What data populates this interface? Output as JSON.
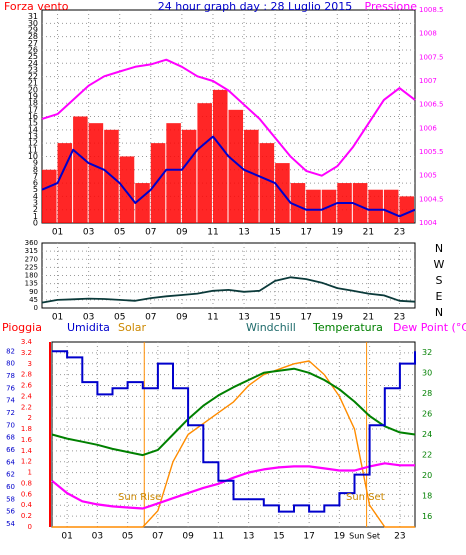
{
  "chart_data": [
    {
      "type": "line",
      "title": "24 hour graph day : 28 Luglio 2015",
      "left_label": "Forza vento",
      "right_label": "Pressione",
      "x_ticks": [
        "01",
        "03",
        "05",
        "07",
        "09",
        "11",
        "13",
        "15",
        "17",
        "19",
        "21",
        "23"
      ],
      "y_left_ticks": [
        "0",
        "1",
        "2",
        "3",
        "4",
        "5",
        "6",
        "7",
        "8",
        "9",
        "10",
        "11",
        "12",
        "13",
        "14",
        "15",
        "16",
        "17",
        "18",
        "19",
        "20",
        "21",
        "22",
        "23",
        "24",
        "25",
        "26",
        "27",
        "28",
        "29",
        "30",
        "31"
      ],
      "y_right_ticks": [
        "1004",
        "1004.5",
        "1005",
        "1005.5",
        "1006",
        "1006.5",
        "1007",
        "1007.5",
        "1008",
        "1008.5"
      ],
      "ylim_left": [
        0,
        32
      ],
      "ylim_right": [
        1004,
        1008.5
      ],
      "grid": true,
      "colors": {
        "gust": "#ff0000",
        "wind": "#0000cc",
        "pressure": "#ff00ff"
      },
      "x_hours": [
        0,
        1,
        2,
        3,
        4,
        5,
        6,
        7,
        8,
        9,
        10,
        11,
        12,
        13,
        14,
        15,
        16,
        17,
        18,
        19,
        20,
        21,
        22,
        23,
        24
      ],
      "series": [
        {
          "id": "gust",
          "values": [
            8,
            12,
            16,
            15,
            14,
            10,
            6,
            12,
            15,
            14,
            18,
            20,
            17,
            14,
            12,
            9,
            6,
            5,
            5,
            6,
            6,
            5,
            5,
            4,
            5
          ]
        },
        {
          "id": "wind",
          "values": [
            5,
            6,
            11,
            9,
            8,
            6,
            3,
            5,
            8,
            8,
            11,
            13,
            10,
            8,
            7,
            6,
            3,
            2,
            2,
            3,
            3,
            2,
            2,
            1,
            2
          ]
        },
        {
          "id": "pressure",
          "values": [
            1006.2,
            1006.3,
            1006.6,
            1006.9,
            1007.1,
            1007.2,
            1007.3,
            1007.35,
            1007.45,
            1007.3,
            1007.1,
            1007.0,
            1006.8,
            1006.5,
            1006.2,
            1005.8,
            1005.4,
            1005.1,
            1005.0,
            1005.2,
            1005.6,
            1006.1,
            1006.6,
            1006.85,
            1006.6
          ]
        }
      ]
    },
    {
      "type": "line",
      "right_label": "N\nW\nS\nE\nN",
      "x_ticks": [
        "01",
        "03",
        "05",
        "07",
        "09",
        "11",
        "13",
        "15",
        "17",
        "19",
        "21",
        "23"
      ],
      "y_left_ticks": [
        "0",
        "45",
        "90",
        "135",
        "180",
        "225",
        "270",
        "315",
        "360"
      ],
      "ylim_left": [
        0,
        360
      ],
      "grid": true,
      "colors": {
        "direction": "#0b3a3a"
      },
      "x_hours": [
        0,
        1,
        2,
        3,
        4,
        5,
        6,
        7,
        8,
        9,
        10,
        11,
        12,
        13,
        14,
        15,
        16,
        17,
        18,
        19,
        20,
        21,
        22,
        23,
        24
      ],
      "series": [
        {
          "id": "direction",
          "values": [
            30,
            45,
            48,
            52,
            50,
            45,
            40,
            55,
            65,
            72,
            80,
            95,
            100,
            90,
            95,
            150,
            170,
            160,
            140,
            110,
            95,
            80,
            70,
            40,
            35
          ]
        }
      ]
    },
    {
      "type": "line",
      "labels": {
        "pioggia": "Pioggia",
        "umidita": "Umidita",
        "solar": "Solar",
        "windchill": "Windchill",
        "temperatura": "Temperatura",
        "dew_point": "Dew Point (°C)"
      },
      "x_ticks": [
        "01",
        "03",
        "05",
        "07",
        "09",
        "11",
        "13",
        "15",
        "17",
        "19",
        "21",
        "23"
      ],
      "x_tick_sunset": "Sun Set",
      "annotations": {
        "sunrise": "Sun Rise",
        "sunset": "Sun Set"
      },
      "sunrise_hour": 6.1,
      "sunset_hour": 20.8,
      "y_rain_ticks": [
        "0",
        "0.2",
        "0.4",
        "0.6",
        "0.8",
        "1",
        "1.2",
        "1.4",
        "1.6",
        "1.8",
        "2",
        "2.2",
        "2.4",
        "2.6",
        "2.8",
        "3",
        "3.2",
        "3.4"
      ],
      "y_hum_ticks": [
        "54",
        "56",
        "58",
        "60",
        "62",
        "64",
        "66",
        "68",
        "70",
        "72",
        "74",
        "76",
        "78",
        "80",
        "82"
      ],
      "y_temp_ticks": [
        "16",
        "18",
        "20",
        "22",
        "24",
        "26",
        "28",
        "30",
        "32"
      ],
      "ylim_rain": [
        0,
        3.4
      ],
      "ylim_hum": [
        53.5,
        83.5
      ],
      "ylim_temp": [
        15,
        33
      ],
      "grid": true,
      "colors": {
        "humidity": "#0000cc",
        "solar": "#ff8c00",
        "temperature": "#008000",
        "dewpoint": "#ff00ff",
        "rain": "#ff0000"
      },
      "x_hours": [
        0,
        1,
        2,
        3,
        4,
        5,
        6,
        7,
        8,
        9,
        10,
        11,
        12,
        13,
        14,
        15,
        16,
        17,
        18,
        19,
        20,
        21,
        22,
        23,
        24
      ],
      "series": [
        {
          "id": "humidity",
          "values": [
            82,
            81,
            77,
            75,
            76,
            77,
            76,
            80,
            76,
            70,
            64,
            61,
            58,
            58,
            57,
            56,
            57,
            56,
            57,
            59,
            62,
            70,
            76,
            80,
            82
          ]
        },
        {
          "id": "solar",
          "values": [
            0,
            0,
            0,
            0,
            0,
            0,
            0,
            0.3,
            1.2,
            1.7,
            1.9,
            2.1,
            2.3,
            2.6,
            2.8,
            2.9,
            3.0,
            3.05,
            2.8,
            2.4,
            1.8,
            0.4,
            0,
            0,
            0
          ]
        },
        {
          "id": "temperature",
          "values": [
            24,
            23.6,
            23.3,
            23.0,
            22.6,
            22.3,
            22.0,
            22.5,
            24,
            25.5,
            26.8,
            27.8,
            28.6,
            29.3,
            30,
            30.2,
            30.4,
            30,
            29.3,
            28.4,
            27.2,
            25.8,
            24.8,
            24.2,
            24
          ]
        },
        {
          "id": "dewpoint",
          "values": [
            19.5,
            18.3,
            17.5,
            17.2,
            17.0,
            16.9,
            16.8,
            17.3,
            17.8,
            18.3,
            18.8,
            19.2,
            19.8,
            20.3,
            20.6,
            20.8,
            20.9,
            20.9,
            20.7,
            20.5,
            20.5,
            20.9,
            21.2,
            21.0,
            21.0
          ]
        }
      ]
    }
  ]
}
